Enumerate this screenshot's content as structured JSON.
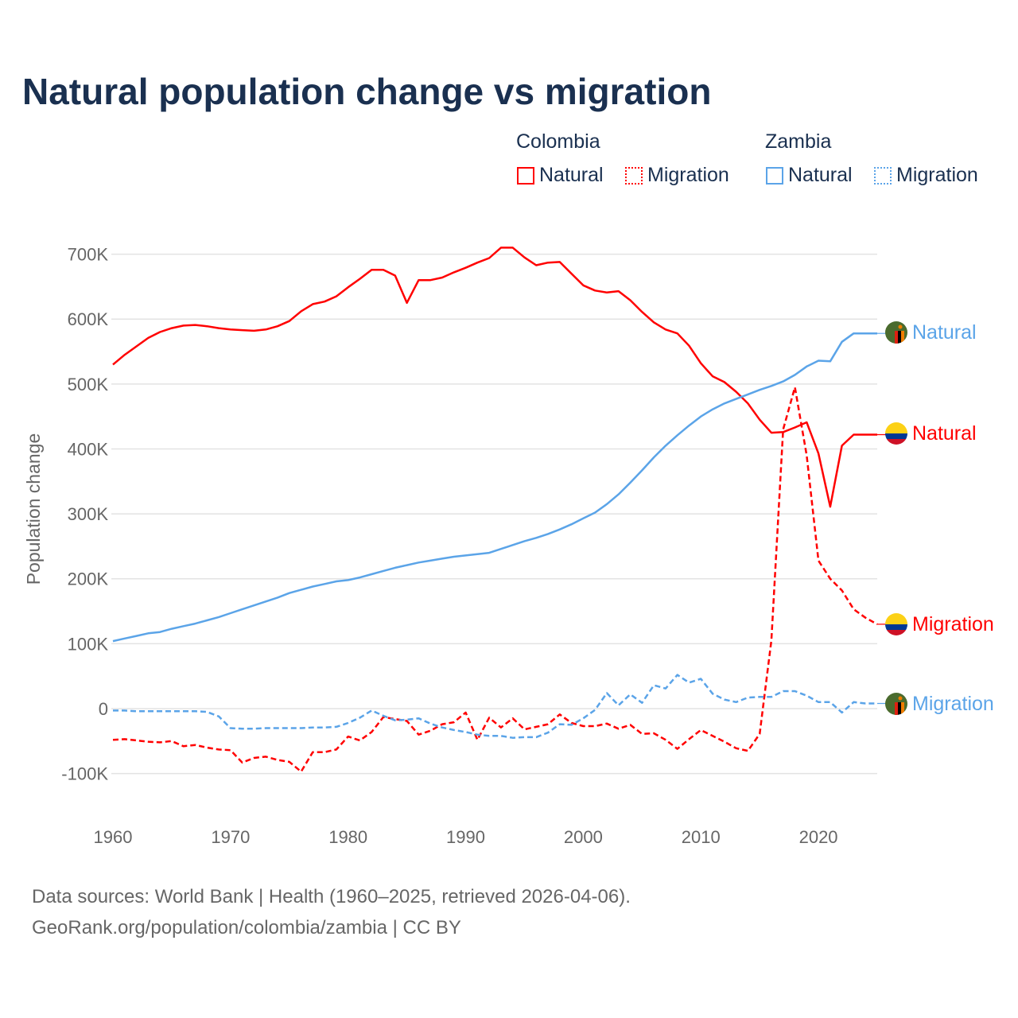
{
  "chart_data": {
    "type": "line",
    "title": "Natural population change vs migration",
    "ylabel": "Population change",
    "xlabel": "",
    "xlim": [
      1960,
      2025
    ],
    "ylim": [
      -150000,
      750000
    ],
    "x_ticks": [
      "1960",
      "1970",
      "1980",
      "1990",
      "2000",
      "2010",
      "2020"
    ],
    "y_ticks": [
      {
        "v": -100000,
        "label": "-100K"
      },
      {
        "v": 0,
        "label": "0"
      },
      {
        "v": 100000,
        "label": "100K"
      },
      {
        "v": 200000,
        "label": "200K"
      },
      {
        "v": 300000,
        "label": "300K"
      },
      {
        "v": 400000,
        "label": "400K"
      },
      {
        "v": 500000,
        "label": "500K"
      },
      {
        "v": 600000,
        "label": "600K"
      },
      {
        "v": 700000,
        "label": "700K"
      }
    ],
    "grid": true,
    "legend_placement": "top-right",
    "legend_groups": [
      "Colombia",
      "Zambia"
    ],
    "x_start": 1960,
    "series": [
      {
        "name": "Natural",
        "country": "Colombia",
        "color": "#ff0000",
        "dash": "solid",
        "end_label": "Natural",
        "flag": "colombia",
        "values_k": [
          530,
          545,
          558,
          571,
          580,
          586,
          590,
          591,
          589,
          586,
          584,
          583,
          582,
          584,
          589,
          597,
          612,
          623,
          627,
          635,
          649,
          662,
          676,
          676,
          667,
          625,
          660,
          660,
          664,
          672,
          679,
          687,
          694,
          710,
          710,
          695,
          683,
          687,
          688,
          670,
          652,
          644,
          641,
          643,
          629,
          611,
          595,
          584,
          578,
          559,
          532,
          512,
          503,
          488,
          470,
          445,
          425,
          426,
          433,
          441,
          393,
          311,
          405,
          422,
          422,
          422
        ]
      },
      {
        "name": "Migration",
        "country": "Colombia",
        "color": "#ff0000",
        "dash": "dashed",
        "end_label": "Migration",
        "flag": "colombia",
        "values_k": [
          -48,
          -47,
          -49,
          -51,
          -52,
          -50,
          -58,
          -56,
          -60,
          -63,
          -64,
          -83,
          -76,
          -74,
          -79,
          -82,
          -97,
          -67,
          -67,
          -63,
          -43,
          -49,
          -36,
          -13,
          -16,
          -19,
          -40,
          -34,
          -24,
          -21,
          -6,
          -48,
          -14,
          -29,
          -15,
          -32,
          -28,
          -24,
          -9,
          -22,
          -27,
          -27,
          -23,
          -31,
          -25,
          -39,
          -38,
          -48,
          -62,
          -47,
          -33,
          -42,
          -51,
          -61,
          -65,
          -39,
          105,
          430,
          495,
          390,
          228,
          200,
          182,
          153,
          140,
          130
        ]
      },
      {
        "name": "Natural",
        "country": "Zambia",
        "color": "#5ba4e8",
        "dash": "solid",
        "end_label": "Natural",
        "flag": "zambia",
        "values_k": [
          104,
          108,
          112,
          116,
          118,
          123,
          127,
          131,
          136,
          141,
          147,
          153,
          159,
          165,
          171,
          178,
          183,
          188,
          192,
          196,
          198,
          202,
          207,
          212,
          217,
          221,
          225,
          228,
          231,
          234,
          236,
          238,
          240,
          246,
          252,
          258,
          263,
          269,
          276,
          284,
          293,
          302,
          315,
          330,
          348,
          367,
          387,
          405,
          421,
          436,
          450,
          461,
          470,
          477,
          484,
          491,
          497,
          504,
          514,
          527,
          536,
          535,
          565,
          578,
          578,
          578
        ]
      },
      {
        "name": "Migration",
        "country": "Zambia",
        "color": "#5ba4e8",
        "dash": "dashed",
        "end_label": "Migration",
        "flag": "zambia",
        "values_k": [
          -3,
          -3,
          -4,
          -4,
          -4,
          -4,
          -4,
          -4,
          -5,
          -12,
          -30,
          -31,
          -31,
          -30,
          -30,
          -30,
          -30,
          -29,
          -29,
          -28,
          -22,
          -14,
          -3,
          -11,
          -18,
          -17,
          -15,
          -23,
          -29,
          -33,
          -36,
          -40,
          -42,
          -42,
          -45,
          -44,
          -44,
          -37,
          -24,
          -25,
          -15,
          -2,
          24,
          5,
          22,
          9,
          36,
          31,
          52,
          40,
          46,
          23,
          14,
          10,
          17,
          18,
          18,
          27,
          27,
          20,
          10,
          10,
          -6,
          10,
          8,
          8
        ]
      }
    ]
  },
  "legend": {
    "colombia": "Colombia",
    "zambia": "Zambia",
    "natural": "Natural",
    "migration": "Migration"
  },
  "footer": {
    "line1": "Data sources: World Bank | Health (1960–2025, retrieved 2026-04-06).",
    "line2": "GeoRank.org/population/colombia/zambia | CC BY"
  }
}
